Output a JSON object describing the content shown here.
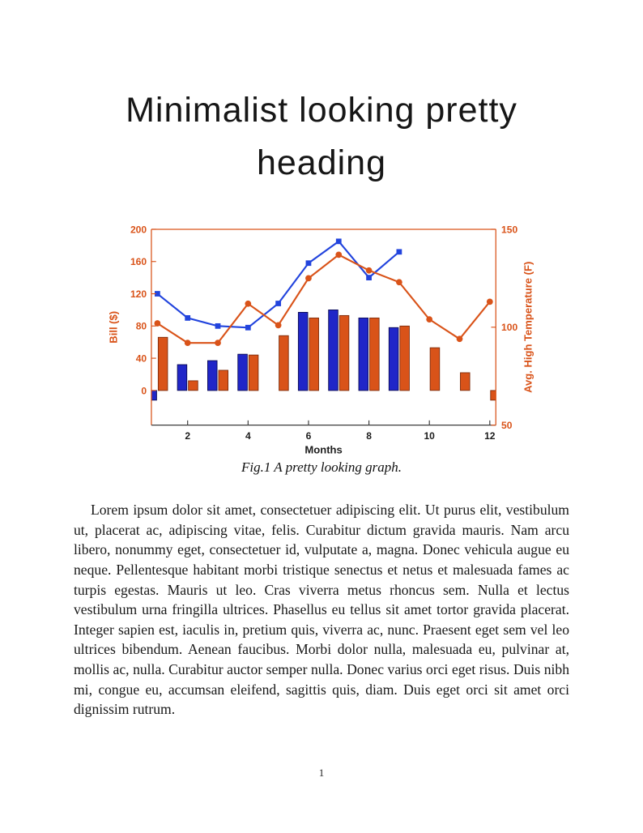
{
  "document": {
    "heading": "Minimalist looking pretty heading",
    "figure_caption": "Fig.1 A pretty looking graph.",
    "paragraph": "Lorem ipsum dolor sit amet, consectetuer adipiscing elit. Ut purus elit, vestibulum ut, placerat ac, adipiscing vitae, felis. Curabitur dictum gravida mauris. Nam arcu libero, nonummy eget, consectetuer id, vulputate a, magna. Donec vehicula augue eu neque. Pellentesque habitant morbi tristique senectus et netus et malesuada fames ac turpis egestas. Mauris ut leo. Cras viverra metus rhoncus sem. Nulla et lectus vestibulum urna fringilla ultrices. Phasellus eu tellus sit amet tortor gravida placerat. Integer sapien est, iaculis in, pretium quis, viverra ac, nunc. Praesent eget sem vel leo ultrices bibendum. Aenean faucibus. Morbi dolor nulla, malesuada eu, pulvinar at, mollis ac, nulla. Curabitur auctor semper nulla. Donec varius orci eget risus. Duis nibh mi, congue eu, accumsan eleifend, sagittis quis, diam. Duis eget orci sit amet orci dignissim rutrum.",
    "page_number": "1"
  },
  "chart_data": {
    "type": "bar-line-combo-dual-axis",
    "x": [
      1,
      2,
      3,
      4,
      5,
      6,
      7,
      8,
      9,
      10,
      11,
      12
    ],
    "xlim": [
      0.8,
      12.2
    ],
    "x_ticks": [
      2,
      4,
      6,
      8,
      10,
      12
    ],
    "xlabel": "Months",
    "grid": false,
    "legend": false,
    "left_axis": {
      "label": "Bill ($)",
      "ylim": [
        -43,
        200
      ],
      "ticks": [
        0,
        40,
        80,
        120,
        160,
        200
      ],
      "color": "#d95319"
    },
    "right_axis": {
      "label": "Avg. High Temperature (F)",
      "ylim": [
        50,
        150
      ],
      "ticks": [
        50,
        100,
        150
      ],
      "color": "#d95319"
    },
    "x_axis_color": "#3a3a3a",
    "x_text_color": "#1c1c1c",
    "series": [
      {
        "name": "blue-bars",
        "type": "bar",
        "axis": "left",
        "color": "#2026c8",
        "edge_color": "#0a0a50",
        "values": [
          -12,
          32,
          37,
          45,
          null,
          97,
          100,
          90,
          78,
          null,
          null,
          null
        ]
      },
      {
        "name": "orange-bars",
        "type": "bar",
        "axis": "left",
        "color": "#d95319",
        "edge_color": "#7a2a0a",
        "values": [
          66,
          12,
          25,
          44,
          68,
          90,
          93,
          90,
          80,
          53,
          22,
          -12
        ]
      },
      {
        "name": "blue-line",
        "type": "line",
        "axis": "left",
        "color": "#2244dd",
        "marker": "square",
        "values": [
          120,
          90,
          80,
          78,
          108,
          158,
          185,
          140,
          172,
          null,
          null,
          null
        ]
      },
      {
        "name": "orange-line",
        "type": "line",
        "axis": "right",
        "color": "#d95319",
        "marker": "circle",
        "values": [
          102,
          92,
          92,
          112,
          101,
          125,
          137,
          129,
          123,
          104,
          94,
          113
        ]
      }
    ]
  }
}
